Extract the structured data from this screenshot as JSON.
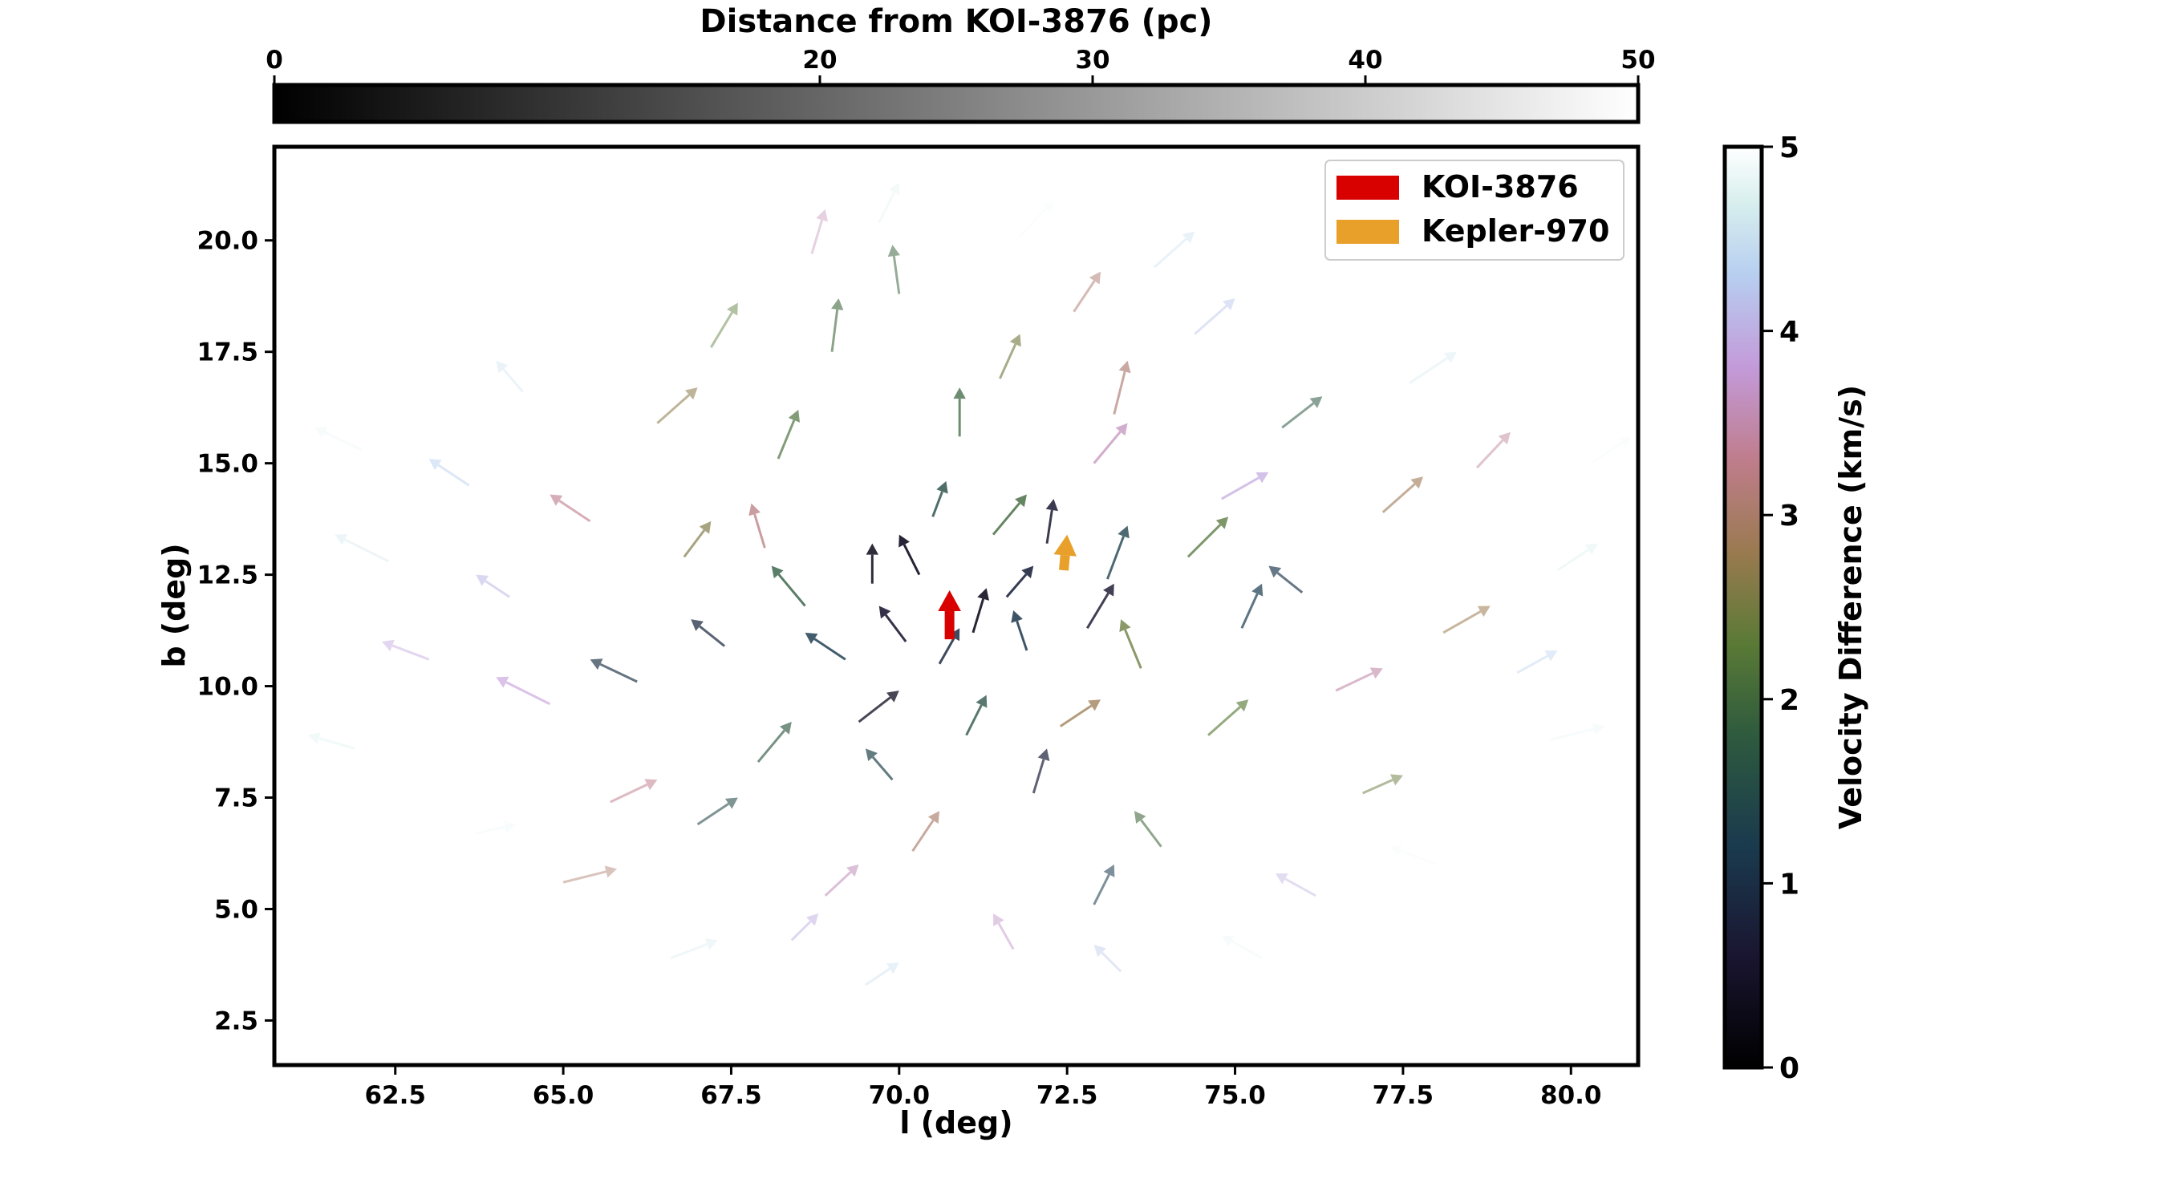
{
  "chart_data": {
    "type": "quiver",
    "xlabel": "l (deg)",
    "ylabel": "b (deg)",
    "xlim": [
      60.7,
      81.0
    ],
    "ylim": [
      1.5,
      22.1
    ],
    "x_ticks": [
      "62.5",
      "65.0",
      "67.5",
      "70.0",
      "72.5",
      "75.0",
      "77.5",
      "80.0"
    ],
    "y_ticks": [
      "2.5",
      "5.0",
      "7.5",
      "10.0",
      "12.5",
      "15.0",
      "17.5",
      "20.0"
    ],
    "distance_colorbar": {
      "title": "Distance from KOI-3876 (pc)",
      "range": [
        0,
        50
      ],
      "ticks": [
        "0",
        "20",
        "30",
        "40",
        "50"
      ],
      "colormap": "gray"
    },
    "velocity_colorbar": {
      "label": "Velocity Difference (km/s)",
      "range": [
        0,
        5
      ],
      "ticks": [
        "0",
        "1",
        "2",
        "3",
        "4",
        "5"
      ],
      "colormap": "cubehelix"
    },
    "legend": {
      "position": "upper right",
      "entries": [
        {
          "label": "KOI-3876",
          "color": "#d90000"
        },
        {
          "label": "Kepler-970",
          "color": "#e8a02a"
        }
      ]
    },
    "highlighted": [
      {
        "name": "KOI-3876",
        "l": 70.75,
        "b": 11.05,
        "dl": 0.0,
        "db": 1.1,
        "color": "#d90000"
      },
      {
        "name": "Kepler-970",
        "l": 72.45,
        "b": 12.6,
        "dl": 0.05,
        "db": 0.8,
        "color": "#e8a02a"
      }
    ],
    "arrows_note": "Field stars shown as arrows; color = velocity difference, opacity fades with distance.",
    "arrows": [
      {
        "l": 70.3,
        "b": 12.5,
        "dl": -0.3,
        "db": 0.9,
        "v": 0.5,
        "d": 4
      },
      {
        "l": 71.1,
        "b": 11.2,
        "dl": 0.2,
        "db": 1.0,
        "v": 0.4,
        "d": 5
      },
      {
        "l": 70.1,
        "b": 11.0,
        "dl": -0.4,
        "db": 0.8,
        "v": 0.6,
        "d": 6
      },
      {
        "l": 71.6,
        "b": 12.0,
        "dl": 0.4,
        "db": 0.7,
        "v": 0.8,
        "d": 6
      },
      {
        "l": 72.2,
        "b": 13.2,
        "dl": 0.1,
        "db": 1.0,
        "v": 0.7,
        "d": 7
      },
      {
        "l": 69.6,
        "b": 12.3,
        "dl": 0.0,
        "db": 0.9,
        "v": 0.3,
        "d": 7
      },
      {
        "l": 70.6,
        "b": 10.5,
        "dl": 0.3,
        "db": 0.8,
        "v": 0.9,
        "d": 8
      },
      {
        "l": 71.9,
        "b": 10.8,
        "dl": -0.2,
        "db": 0.9,
        "v": 1.1,
        "d": 8
      },
      {
        "l": 72.8,
        "b": 11.3,
        "dl": 0.4,
        "db": 1.0,
        "v": 0.6,
        "d": 9
      },
      {
        "l": 69.2,
        "b": 10.6,
        "dl": -0.6,
        "db": 0.6,
        "v": 1.2,
        "d": 9
      },
      {
        "l": 70.5,
        "b": 13.8,
        "dl": 0.2,
        "db": 0.8,
        "v": 1.5,
        "d": 10
      },
      {
        "l": 71.4,
        "b": 13.4,
        "dl": 0.5,
        "db": 0.9,
        "v": 2.0,
        "d": 10
      },
      {
        "l": 73.1,
        "b": 12.4,
        "dl": 0.3,
        "db": 1.2,
        "v": 1.3,
        "d": 11
      },
      {
        "l": 68.6,
        "b": 11.8,
        "dl": -0.5,
        "db": 0.9,
        "v": 1.8,
        "d": 11
      },
      {
        "l": 73.6,
        "b": 10.4,
        "dl": -0.3,
        "db": 1.1,
        "v": 2.4,
        "d": 12
      },
      {
        "l": 69.4,
        "b": 9.2,
        "dl": 0.6,
        "db": 0.7,
        "v": 0.4,
        "d": 12
      },
      {
        "l": 71.0,
        "b": 8.9,
        "dl": 0.3,
        "db": 0.9,
        "v": 1.6,
        "d": 12
      },
      {
        "l": 72.4,
        "b": 9.1,
        "dl": 0.6,
        "db": 0.6,
        "v": 2.8,
        "d": 13
      },
      {
        "l": 74.3,
        "b": 12.9,
        "dl": 0.6,
        "db": 0.9,
        "v": 2.2,
        "d": 13
      },
      {
        "l": 68.0,
        "b": 13.1,
        "dl": -0.2,
        "db": 1.0,
        "v": 3.2,
        "d": 13
      },
      {
        "l": 70.9,
        "b": 15.6,
        "dl": 0.0,
        "db": 1.1,
        "v": 1.9,
        "d": 14
      },
      {
        "l": 72.9,
        "b": 15.0,
        "dl": 0.5,
        "db": 0.9,
        "v": 3.6,
        "d": 14
      },
      {
        "l": 67.4,
        "b": 10.9,
        "dl": -0.5,
        "db": 0.6,
        "v": 0.9,
        "d": 14
      },
      {
        "l": 75.1,
        "b": 11.3,
        "dl": 0.3,
        "db": 1.0,
        "v": 1.2,
        "d": 15
      },
      {
        "l": 69.9,
        "b": 7.9,
        "dl": -0.4,
        "db": 0.7,
        "v": 1.4,
        "d": 15
      },
      {
        "l": 72.0,
        "b": 7.6,
        "dl": 0.2,
        "db": 1.0,
        "v": 0.8,
        "d": 15
      },
      {
        "l": 66.8,
        "b": 12.9,
        "dl": 0.4,
        "db": 0.8,
        "v": 2.6,
        "d": 16
      },
      {
        "l": 74.8,
        "b": 14.2,
        "dl": 0.7,
        "db": 0.6,
        "v": 3.9,
        "d": 16
      },
      {
        "l": 68.2,
        "b": 15.1,
        "dl": 0.3,
        "db": 1.1,
        "v": 2.1,
        "d": 16
      },
      {
        "l": 73.2,
        "b": 16.1,
        "dl": 0.2,
        "db": 1.2,
        "v": 3.1,
        "d": 17
      },
      {
        "l": 66.1,
        "b": 10.1,
        "dl": -0.7,
        "db": 0.5,
        "v": 1.0,
        "d": 17
      },
      {
        "l": 76.0,
        "b": 12.1,
        "dl": -0.5,
        "db": 0.6,
        "v": 1.1,
        "d": 17
      },
      {
        "l": 67.9,
        "b": 8.3,
        "dl": 0.5,
        "db": 0.9,
        "v": 1.7,
        "d": 18
      },
      {
        "l": 74.6,
        "b": 8.9,
        "dl": 0.6,
        "db": 0.8,
        "v": 2.3,
        "d": 18
      },
      {
        "l": 70.2,
        "b": 6.3,
        "dl": 0.4,
        "db": 0.9,
        "v": 3.0,
        "d": 18
      },
      {
        "l": 71.5,
        "b": 16.9,
        "dl": 0.3,
        "db": 1.0,
        "v": 2.5,
        "d": 19
      },
      {
        "l": 65.4,
        "b": 13.7,
        "dl": -0.6,
        "db": 0.6,
        "v": 3.3,
        "d": 19
      },
      {
        "l": 77.2,
        "b": 13.9,
        "dl": 0.6,
        "db": 0.8,
        "v": 2.9,
        "d": 19
      },
      {
        "l": 69.0,
        "b": 17.5,
        "dl": 0.1,
        "db": 1.2,
        "v": 2.0,
        "d": 20
      },
      {
        "l": 64.8,
        "b": 9.6,
        "dl": -0.8,
        "db": 0.6,
        "v": 3.8,
        "d": 20
      },
      {
        "l": 76.5,
        "b": 9.9,
        "dl": 0.7,
        "db": 0.5,
        "v": 3.5,
        "d": 20
      },
      {
        "l": 67.0,
        "b": 6.9,
        "dl": 0.6,
        "db": 0.6,
        "v": 1.5,
        "d": 21
      },
      {
        "l": 73.9,
        "b": 6.4,
        "dl": -0.4,
        "db": 0.8,
        "v": 2.0,
        "d": 21
      },
      {
        "l": 68.9,
        "b": 5.3,
        "dl": 0.5,
        "db": 0.7,
        "v": 3.6,
        "d": 22
      },
      {
        "l": 72.9,
        "b": 5.1,
        "dl": 0.3,
        "db": 0.9,
        "v": 1.2,
        "d": 22
      },
      {
        "l": 66.4,
        "b": 15.9,
        "dl": 0.6,
        "db": 0.8,
        "v": 2.7,
        "d": 22
      },
      {
        "l": 75.7,
        "b": 15.8,
        "dl": 0.6,
        "db": 0.7,
        "v": 1.7,
        "d": 23
      },
      {
        "l": 64.2,
        "b": 12.0,
        "dl": -0.5,
        "db": 0.5,
        "v": 4.1,
        "d": 23
      },
      {
        "l": 78.1,
        "b": 11.2,
        "dl": 0.7,
        "db": 0.6,
        "v": 2.8,
        "d": 23
      },
      {
        "l": 70.0,
        "b": 18.8,
        "dl": -0.1,
        "db": 1.1,
        "v": 1.9,
        "d": 24
      },
      {
        "l": 72.6,
        "b": 18.4,
        "dl": 0.4,
        "db": 0.9,
        "v": 3.1,
        "d": 24
      },
      {
        "l": 65.7,
        "b": 7.4,
        "dl": 0.7,
        "db": 0.5,
        "v": 3.3,
        "d": 24
      },
      {
        "l": 76.9,
        "b": 7.6,
        "dl": 0.6,
        "db": 0.4,
        "v": 2.4,
        "d": 25
      },
      {
        "l": 68.4,
        "b": 4.3,
        "dl": 0.4,
        "db": 0.6,
        "v": 4.0,
        "d": 25
      },
      {
        "l": 71.7,
        "b": 4.1,
        "dl": -0.3,
        "db": 0.8,
        "v": 3.7,
        "d": 26
      },
      {
        "l": 63.6,
        "b": 14.5,
        "dl": -0.6,
        "db": 0.6,
        "v": 4.3,
        "d": 26
      },
      {
        "l": 78.6,
        "b": 14.9,
        "dl": 0.5,
        "db": 0.8,
        "v": 3.4,
        "d": 26
      },
      {
        "l": 67.2,
        "b": 17.6,
        "dl": 0.4,
        "db": 1.0,
        "v": 2.3,
        "d": 27
      },
      {
        "l": 74.4,
        "b": 17.9,
        "dl": 0.6,
        "db": 0.8,
        "v": 4.2,
        "d": 27
      },
      {
        "l": 63.0,
        "b": 10.6,
        "dl": -0.7,
        "db": 0.4,
        "v": 3.9,
        "d": 28
      },
      {
        "l": 79.2,
        "b": 10.3,
        "dl": 0.6,
        "db": 0.5,
        "v": 4.4,
        "d": 28
      },
      {
        "l": 65.0,
        "b": 5.6,
        "dl": 0.8,
        "db": 0.3,
        "v": 3.0,
        "d": 28
      },
      {
        "l": 76.2,
        "b": 5.3,
        "dl": -0.6,
        "db": 0.5,
        "v": 4.0,
        "d": 29
      },
      {
        "l": 69.5,
        "b": 3.3,
        "dl": 0.5,
        "db": 0.5,
        "v": 4.5,
        "d": 29
      },
      {
        "l": 73.3,
        "b": 3.6,
        "dl": -0.4,
        "db": 0.6,
        "v": 4.2,
        "d": 30
      },
      {
        "l": 68.7,
        "b": 19.7,
        "dl": 0.2,
        "db": 1.0,
        "v": 3.6,
        "d": 30
      },
      {
        "l": 73.8,
        "b": 19.4,
        "dl": 0.6,
        "db": 0.8,
        "v": 4.5,
        "d": 31
      },
      {
        "l": 62.4,
        "b": 12.8,
        "dl": -0.8,
        "db": 0.6,
        "v": 4.6,
        "d": 31
      },
      {
        "l": 79.8,
        "b": 12.6,
        "dl": 0.6,
        "db": 0.6,
        "v": 4.7,
        "d": 32
      },
      {
        "l": 64.4,
        "b": 16.6,
        "dl": -0.4,
        "db": 0.7,
        "v": 4.5,
        "d": 32
      },
      {
        "l": 77.6,
        "b": 16.8,
        "dl": 0.7,
        "db": 0.7,
        "v": 4.6,
        "d": 33
      },
      {
        "l": 61.9,
        "b": 8.6,
        "dl": -0.7,
        "db": 0.3,
        "v": 4.7,
        "d": 33
      },
      {
        "l": 79.7,
        "b": 8.8,
        "dl": 0.8,
        "db": 0.3,
        "v": 4.8,
        "d": 34
      },
      {
        "l": 66.6,
        "b": 3.9,
        "dl": 0.7,
        "db": 0.4,
        "v": 4.6,
        "d": 34
      },
      {
        "l": 75.4,
        "b": 3.9,
        "dl": -0.6,
        "db": 0.5,
        "v": 4.8,
        "d": 35
      },
      {
        "l": 69.7,
        "b": 20.4,
        "dl": 0.3,
        "db": 0.9,
        "v": 4.7,
        "d": 35
      },
      {
        "l": 71.8,
        "b": 20.1,
        "dl": 0.5,
        "db": 0.8,
        "v": 4.9,
        "d": 36
      },
      {
        "l": 62.0,
        "b": 15.3,
        "dl": -0.7,
        "db": 0.5,
        "v": 4.8,
        "d": 36
      },
      {
        "l": 80.3,
        "b": 15.0,
        "dl": 0.6,
        "db": 0.6,
        "v": 4.9,
        "d": 37
      },
      {
        "l": 63.7,
        "b": 6.7,
        "dl": 0.6,
        "db": 0.2,
        "v": 4.8,
        "d": 37
      },
      {
        "l": 78.0,
        "b": 6.0,
        "dl": -0.7,
        "db": 0.4,
        "v": 4.9,
        "d": 38
      }
    ]
  }
}
